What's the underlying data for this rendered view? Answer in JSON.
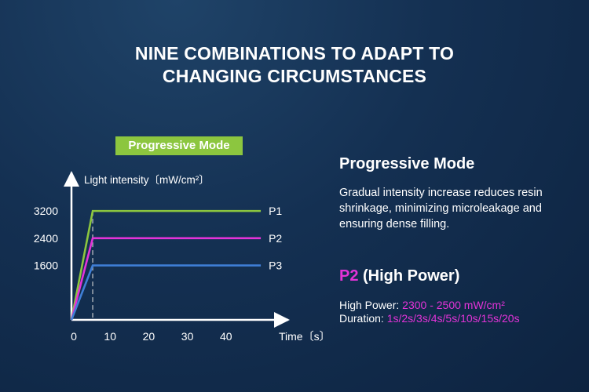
{
  "title_line1": "NINE COMBINATIONS TO ADAPT TO",
  "title_line2": "CHANGING CIRCUMSTANCES",
  "badge": "Progressive Mode",
  "info": {
    "heading": "Progressive Mode",
    "description": "Gradual intensity increase reduces resin shrinkage, minimizing microleakage and ensuring dense filling.",
    "p2_name": "P2",
    "p2_suffix": " (High Power)",
    "power_label": "High Power: ",
    "power_value": "2300 - 2500 mW/cm²",
    "duration_label": "Duration: ",
    "duration_value": "1s/2s/3s/4s/5s/10s/15s/20s"
  },
  "chart_data": {
    "type": "line",
    "ylabel": "Light intensity〔mW/cm²〕",
    "xlabel": "Time〔s〕",
    "x_ticks": [
      0,
      10,
      20,
      30,
      40
    ],
    "y_ticks": [
      1600,
      2400,
      3200
    ],
    "xlim": [
      0,
      50
    ],
    "ylim": [
      0,
      4000
    ],
    "ramp_end_x": 5.5,
    "series": [
      {
        "name": "P1",
        "x": [
          0,
          5.5,
          49
        ],
        "y": [
          0,
          3200,
          3200
        ],
        "color": "#8cc63f"
      },
      {
        "name": "P2",
        "x": [
          0,
          5.5,
          49
        ],
        "y": [
          0,
          2400,
          2400
        ],
        "color": "#e333d8"
      },
      {
        "name": "P3",
        "x": [
          0,
          5.5,
          49
        ],
        "y": [
          0,
          1600,
          1600
        ],
        "color": "#3f7fd6"
      }
    ]
  }
}
